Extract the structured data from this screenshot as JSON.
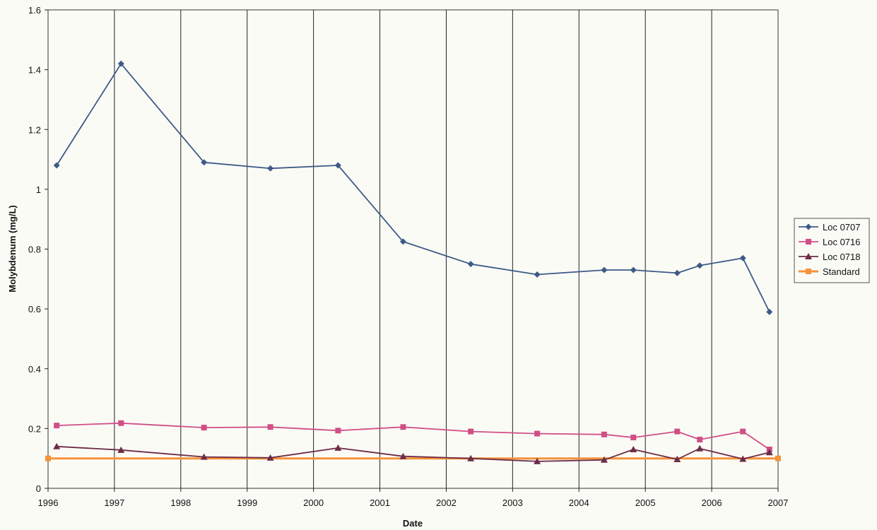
{
  "chart_data": {
    "type": "line",
    "xlabel": "Date",
    "ylabel": "Molybdenum (mg/L)",
    "xlim": [
      1996,
      2007
    ],
    "ylim": [
      0,
      1.6
    ],
    "x_ticks": [
      "1996",
      "1997",
      "1998",
      "1999",
      "2000",
      "2001",
      "2002",
      "2003",
      "2004",
      "2005",
      "2006",
      "2007"
    ],
    "y_ticks": [
      "0",
      "0.2",
      "0.4",
      "0.6",
      "0.8",
      "1",
      "1.2",
      "1.4",
      "1.6"
    ],
    "grid": "vertical",
    "legend_position": "right",
    "series": [
      {
        "name": "Loc 0707",
        "color": "#3c5a87",
        "marker": "diamond",
        "points": [
          [
            1996.13,
            1.08
          ],
          [
            1997.1,
            1.42
          ],
          [
            1998.35,
            1.09
          ],
          [
            1999.35,
            1.07
          ],
          [
            2000.37,
            1.08
          ],
          [
            2001.35,
            0.825
          ],
          [
            2002.37,
            0.75
          ],
          [
            2003.37,
            0.715
          ],
          [
            2004.38,
            0.73
          ],
          [
            2004.82,
            0.73
          ],
          [
            2005.48,
            0.72
          ],
          [
            2005.82,
            0.745
          ],
          [
            2006.47,
            0.77
          ],
          [
            2006.87,
            0.59
          ]
        ]
      },
      {
        "name": "Loc 0716",
        "color": "#d04f86",
        "marker": "square",
        "points": [
          [
            1996.13,
            0.21
          ],
          [
            1997.1,
            0.218
          ],
          [
            1998.35,
            0.203
          ],
          [
            1999.35,
            0.205
          ],
          [
            2000.37,
            0.193
          ],
          [
            2001.35,
            0.205
          ],
          [
            2002.37,
            0.19
          ],
          [
            2003.37,
            0.183
          ],
          [
            2004.38,
            0.18
          ],
          [
            2004.82,
            0.17
          ],
          [
            2005.48,
            0.19
          ],
          [
            2005.82,
            0.163
          ],
          [
            2006.47,
            0.19
          ],
          [
            2006.87,
            0.13
          ]
        ]
      },
      {
        "name": "Loc 0718",
        "color": "#6d2c47",
        "marker": "triangle",
        "points": [
          [
            1996.13,
            0.14
          ],
          [
            1997.1,
            0.128
          ],
          [
            1998.35,
            0.105
          ],
          [
            1999.35,
            0.102
          ],
          [
            2000.37,
            0.135
          ],
          [
            2001.35,
            0.107
          ],
          [
            2002.37,
            0.1
          ],
          [
            2003.37,
            0.09
          ],
          [
            2004.38,
            0.095
          ],
          [
            2004.82,
            0.13
          ],
          [
            2005.48,
            0.097
          ],
          [
            2005.82,
            0.133
          ],
          [
            2006.47,
            0.098
          ],
          [
            2006.87,
            0.12
          ]
        ]
      },
      {
        "name": "Standard",
        "color": "#f4933a",
        "marker": "square",
        "points": [
          [
            1996.0,
            0.1
          ],
          [
            2007.0,
            0.1
          ]
        ]
      }
    ]
  }
}
